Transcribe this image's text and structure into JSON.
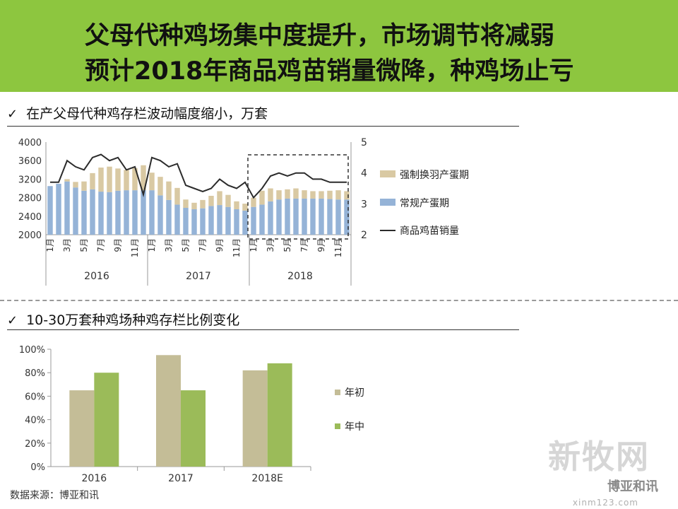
{
  "slide": {
    "title_line1": "父母代种鸡场集中度提升，市场调节将减弱",
    "title_line2": "预计2018年商品鸡苗销量微降，种鸡场止亏",
    "section1": "在产父母代种鸡存栏波动幅度缩小，万套",
    "section2": "10-30万套种鸡场种鸡存栏比例变化",
    "source": "数据来源：博亚和讯",
    "watermark": "新牧网",
    "watermark_sub": "博亚和讯",
    "watermark_url": "xinm123.com",
    "check_icon": "✓"
  },
  "colors": {
    "title_bg": "#8dc63f",
    "regular": "#95b3d7",
    "forced": "#d9c9a3",
    "line": "#2b2b2b",
    "year_start": "#c4bd97",
    "mid_year": "#9bbb59"
  },
  "chart_data": [
    {
      "type": "bar",
      "stacked": true,
      "x": [
        "1月",
        "2月",
        "3月",
        "4月",
        "5月",
        "6月",
        "7月",
        "8月",
        "9月",
        "10月",
        "11月",
        "12月",
        "1月",
        "2月",
        "3月",
        "4月",
        "5月",
        "6月",
        "7月",
        "8月",
        "9月",
        "10月",
        "11月",
        "12月",
        "1月",
        "2月",
        "3月",
        "4月",
        "5月",
        "6月",
        "7月",
        "8月",
        "9月",
        "10月",
        "11月",
        "12月"
      ],
      "tick_labels": [
        "1月",
        "",
        "3月",
        "",
        "5月",
        "",
        "7月",
        "",
        "9月",
        "",
        "11月",
        "",
        "1月",
        "",
        "3月",
        "",
        "5月",
        "",
        "7月",
        "",
        "9月",
        "",
        "11月",
        "",
        "1月",
        "",
        "3月",
        "",
        "5月",
        "",
        "7月",
        "",
        "9月",
        "",
        "11月",
        ""
      ],
      "years": [
        {
          "label": "2016",
          "months": 12
        },
        {
          "label": "2017",
          "months": 12
        },
        {
          "label": "2018",
          "months": 12
        }
      ],
      "series": [
        {
          "name": "常规产蛋期",
          "values": [
            3050,
            3100,
            3150,
            3020,
            2950,
            2980,
            2930,
            2920,
            2950,
            2960,
            2960,
            2960,
            2960,
            2850,
            2750,
            2650,
            2580,
            2550,
            2570,
            2620,
            2640,
            2600,
            2550,
            2520,
            2600,
            2650,
            2720,
            2760,
            2780,
            2780,
            2780,
            2780,
            2780,
            2770,
            2760,
            2760
          ]
        },
        {
          "name": "强制换羽产蛋期",
          "values": [
            0,
            0,
            50,
            120,
            200,
            350,
            520,
            550,
            480,
            440,
            480,
            540,
            380,
            400,
            400,
            360,
            180,
            140,
            180,
            220,
            300,
            260,
            170,
            150,
            200,
            300,
            280,
            200,
            200,
            220,
            180,
            160,
            160,
            180,
            200,
            180
          ]
        }
      ],
      "line": {
        "name": "商品鸡苗销量",
        "axis": "right",
        "values": [
          3.7,
          3.7,
          4.4,
          4.2,
          4.1,
          4.5,
          4.6,
          4.4,
          4.5,
          4.1,
          4.2,
          3.3,
          4.5,
          4.4,
          4.2,
          4.3,
          3.6,
          3.5,
          3.4,
          3.5,
          3.8,
          3.6,
          3.5,
          3.7,
          3.2,
          3.5,
          3.9,
          4.0,
          3.9,
          4.0,
          4.0,
          3.8,
          3.8,
          3.7,
          3.7,
          3.7
        ]
      },
      "ylim": [
        2000,
        4000
      ],
      "yticks": [
        2000,
        2400,
        2800,
        3200,
        3600,
        4000
      ],
      "y2lim": [
        2,
        5
      ],
      "y2ticks": [
        2,
        3,
        4,
        5
      ],
      "legend": "right",
      "highlight": {
        "from_index": 24,
        "to_index": 35
      }
    },
    {
      "type": "bar",
      "categories": [
        "2016",
        "2017",
        "2018E"
      ],
      "series": [
        {
          "name": "年初",
          "values": [
            0.65,
            0.95,
            0.82
          ]
        },
        {
          "name": "年中",
          "values": [
            0.8,
            0.65,
            0.88
          ]
        }
      ],
      "ylim": [
        0,
        1
      ],
      "yticks": [
        "0%",
        "20%",
        "40%",
        "60%",
        "80%",
        "100%"
      ],
      "legend": "right"
    }
  ]
}
